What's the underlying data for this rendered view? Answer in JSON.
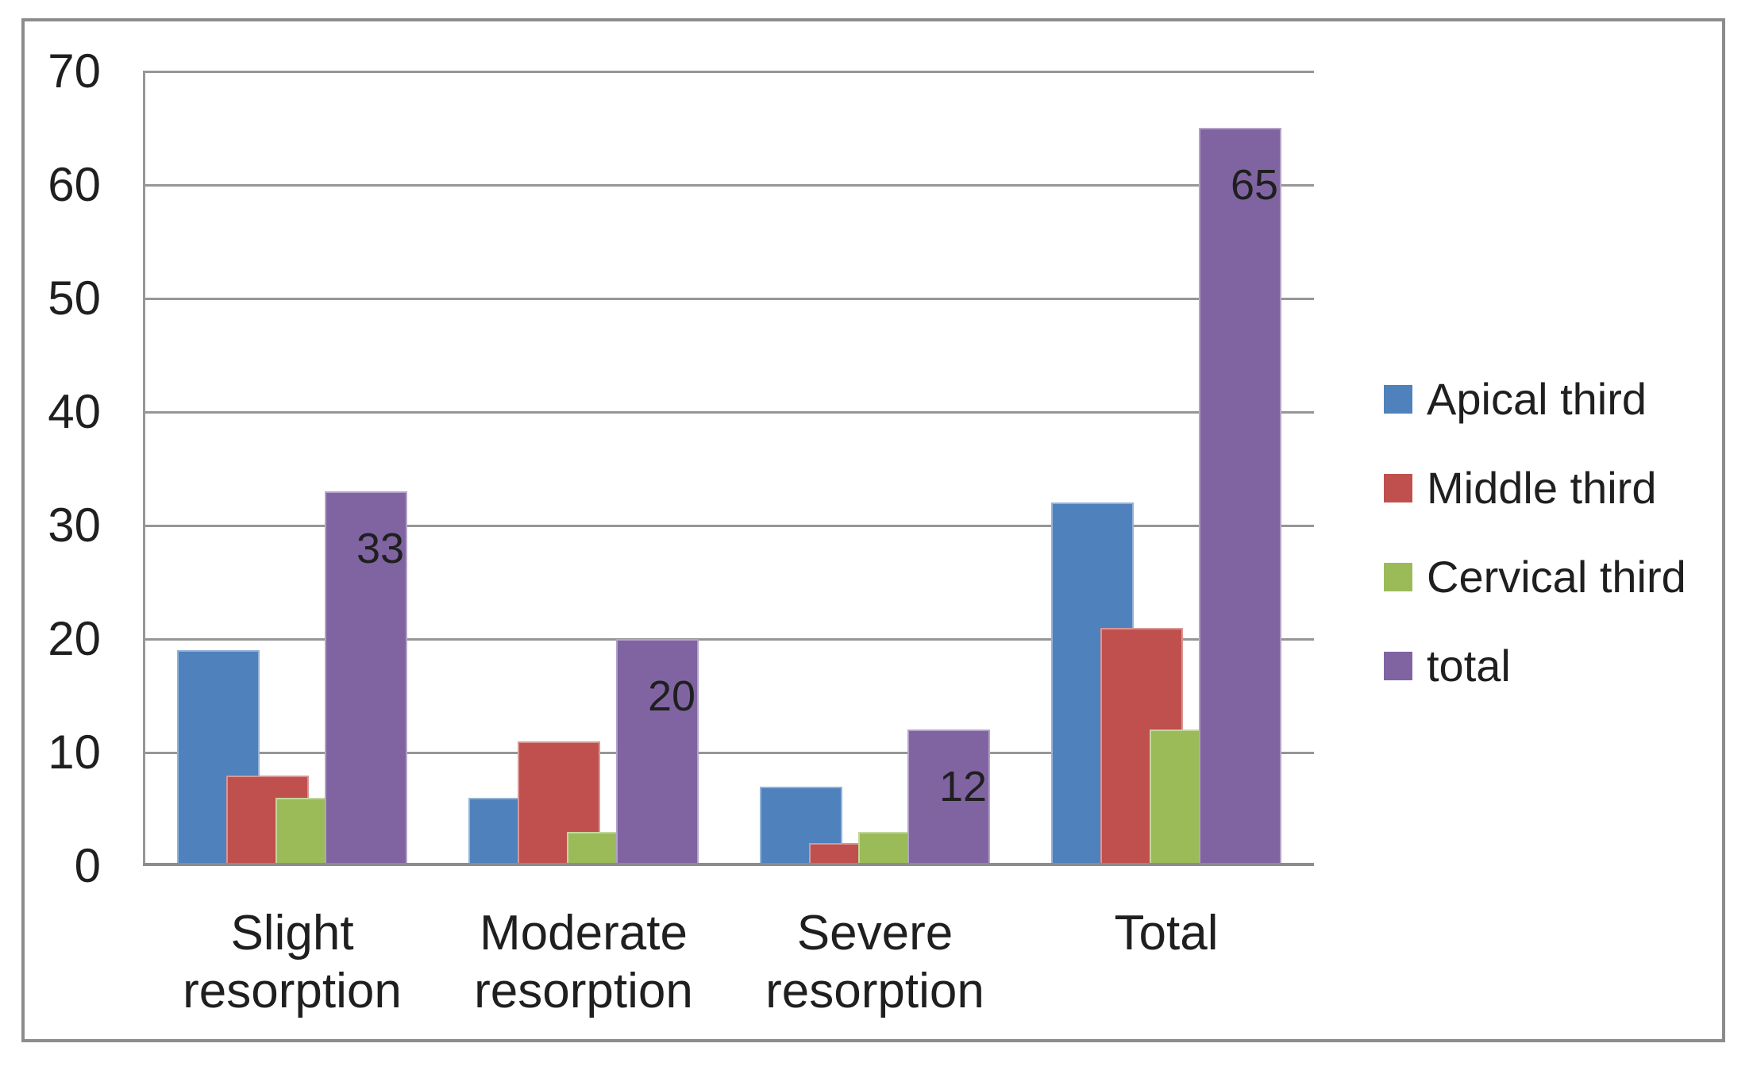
{
  "figure": {
    "background": "#FFFFFF",
    "frame_border_color": "#8C8C8C",
    "grid_color": "#969696",
    "axis_color": "#8C8C8C",
    "text_color": "#1F1F1F"
  },
  "chart_data": {
    "type": "bar",
    "title": "",
    "categories": [
      "Slight resorption",
      "Moderate resorption",
      "Severe resorption",
      "Total"
    ],
    "series": [
      {
        "name": "Apical third",
        "color": "#4F81BD",
        "edge_color": "#95B3D7",
        "values": [
          19,
          6,
          7,
          32
        ]
      },
      {
        "name": "Middle third",
        "color": "#C0504D",
        "edge_color": "#D99694",
        "values": [
          8,
          11,
          2,
          21
        ]
      },
      {
        "name": "Cervical third",
        "color": "#9BBB59",
        "edge_color": "#C3D69B",
        "values": [
          6,
          3,
          3,
          12
        ]
      },
      {
        "name": "total",
        "color": "#8064A2",
        "edge_color": "#B3A2C7",
        "values": [
          33,
          20,
          12,
          65
        ]
      }
    ],
    "data_labels": {
      "series_index": 3,
      "labels": [
        "33",
        "20",
        "12",
        "65"
      ],
      "color": "#1F1F1F"
    },
    "y_axis": {
      "min": 0,
      "max": 70,
      "step": 10,
      "tick_labels": [
        "0",
        "10",
        "20",
        "30",
        "40",
        "50",
        "60",
        "70"
      ]
    },
    "x_axis": {
      "labels": [
        "Slight resorption",
        "Moderate resorption",
        "Severe resorption",
        "Total"
      ]
    },
    "legend": {
      "position": "right",
      "entries": [
        "Apical third",
        "Middle third",
        "Cervical third",
        "total"
      ]
    },
    "grid": {
      "show": true,
      "horizontal_only": true
    }
  }
}
